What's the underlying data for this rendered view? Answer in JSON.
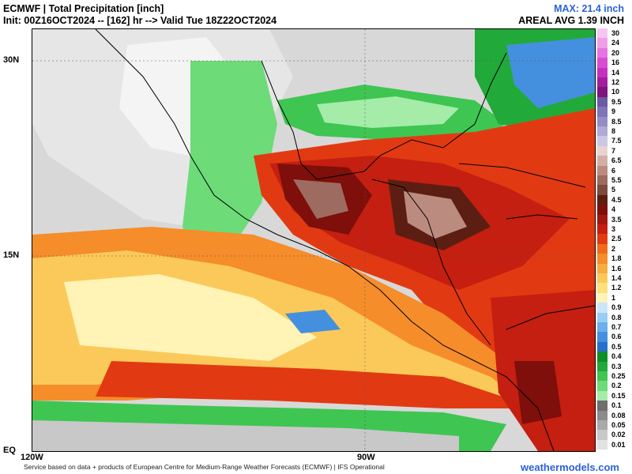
{
  "header": {
    "title": "ECMWF | Total Precipitation [inch]",
    "init": "Init: 00Z16OCT2024 -- [162] hr --> Valid Tue 18Z22OCT2024",
    "max": "MAX: 21.4 inch",
    "areal_avg": "AREAL AVG 1.39 INCH"
  },
  "axes": {
    "lat_labels": [
      "30N",
      "15N",
      "EQ"
    ],
    "lon_labels": [
      "120W",
      "90W"
    ]
  },
  "footer": {
    "credit": "Service based on data + products of European Centre for Medium-Range Weather Forecasts (ECMWF) | IFS Operational",
    "brand": "weathermodels.com"
  },
  "legend": {
    "unit": "inch",
    "items": [
      {
        "label": "30",
        "color": "#f6c6f2"
      },
      {
        "label": "24",
        "color": "#ef9fe9"
      },
      {
        "label": "20",
        "color": "#e574e0"
      },
      {
        "label": "16",
        "color": "#d84dd4"
      },
      {
        "label": "14",
        "color": "#c431bf"
      },
      {
        "label": "12",
        "color": "#a41e9f"
      },
      {
        "label": "10",
        "color": "#7f157c"
      },
      {
        "label": "9.5",
        "color": "#6a5aa6"
      },
      {
        "label": "9",
        "color": "#7e74b7"
      },
      {
        "label": "8.5",
        "color": "#958dc6"
      },
      {
        "label": "8",
        "color": "#b0aad6"
      },
      {
        "label": "7.5",
        "color": "#cbc7e4"
      },
      {
        "label": "7",
        "color": "#e9d3cf"
      },
      {
        "label": "6.5",
        "color": "#d3aea6"
      },
      {
        "label": "6",
        "color": "#bb8b80"
      },
      {
        "label": "5.5",
        "color": "#9e6b60"
      },
      {
        "label": "5",
        "color": "#7e4a40"
      },
      {
        "label": "4.5",
        "color": "#5c1e12"
      },
      {
        "label": "4",
        "color": "#7e0f0a"
      },
      {
        "label": "3.5",
        "color": "#a3160e"
      },
      {
        "label": "3",
        "color": "#c41f10"
      },
      {
        "label": "2.5",
        "color": "#e13a12"
      },
      {
        "label": "2",
        "color": "#f06a1c"
      },
      {
        "label": "1.8",
        "color": "#f58d2a"
      },
      {
        "label": "1.6",
        "color": "#f8ad3e"
      },
      {
        "label": "1.4",
        "color": "#fbc95a"
      },
      {
        "label": "1.2",
        "color": "#fde07c"
      },
      {
        "label": "1",
        "color": "#fff3b5"
      },
      {
        "label": "0.9",
        "color": "#c9e7fb"
      },
      {
        "label": "0.8",
        "color": "#99cdf5"
      },
      {
        "label": "0.7",
        "color": "#6cb0ec"
      },
      {
        "label": "0.6",
        "color": "#4590de"
      },
      {
        "label": "0.5",
        "color": "#2a6fc9"
      },
      {
        "label": "0.4",
        "color": "#0f8f2a"
      },
      {
        "label": "0.3",
        "color": "#21aa3a"
      },
      {
        "label": "0.25",
        "color": "#3fc552"
      },
      {
        "label": "0.2",
        "color": "#6cdb78"
      },
      {
        "label": "0.15",
        "color": "#a4eca8"
      },
      {
        "label": "0.1",
        "color": "#6e6e6e"
      },
      {
        "label": "0.08",
        "color": "#8c8c8c"
      },
      {
        "label": "0.05",
        "color": "#aaaaaa"
      },
      {
        "label": "0.02",
        "color": "#c8c8c8"
      },
      {
        "label": "0.01",
        "color": "#e2e2e2"
      }
    ]
  }
}
